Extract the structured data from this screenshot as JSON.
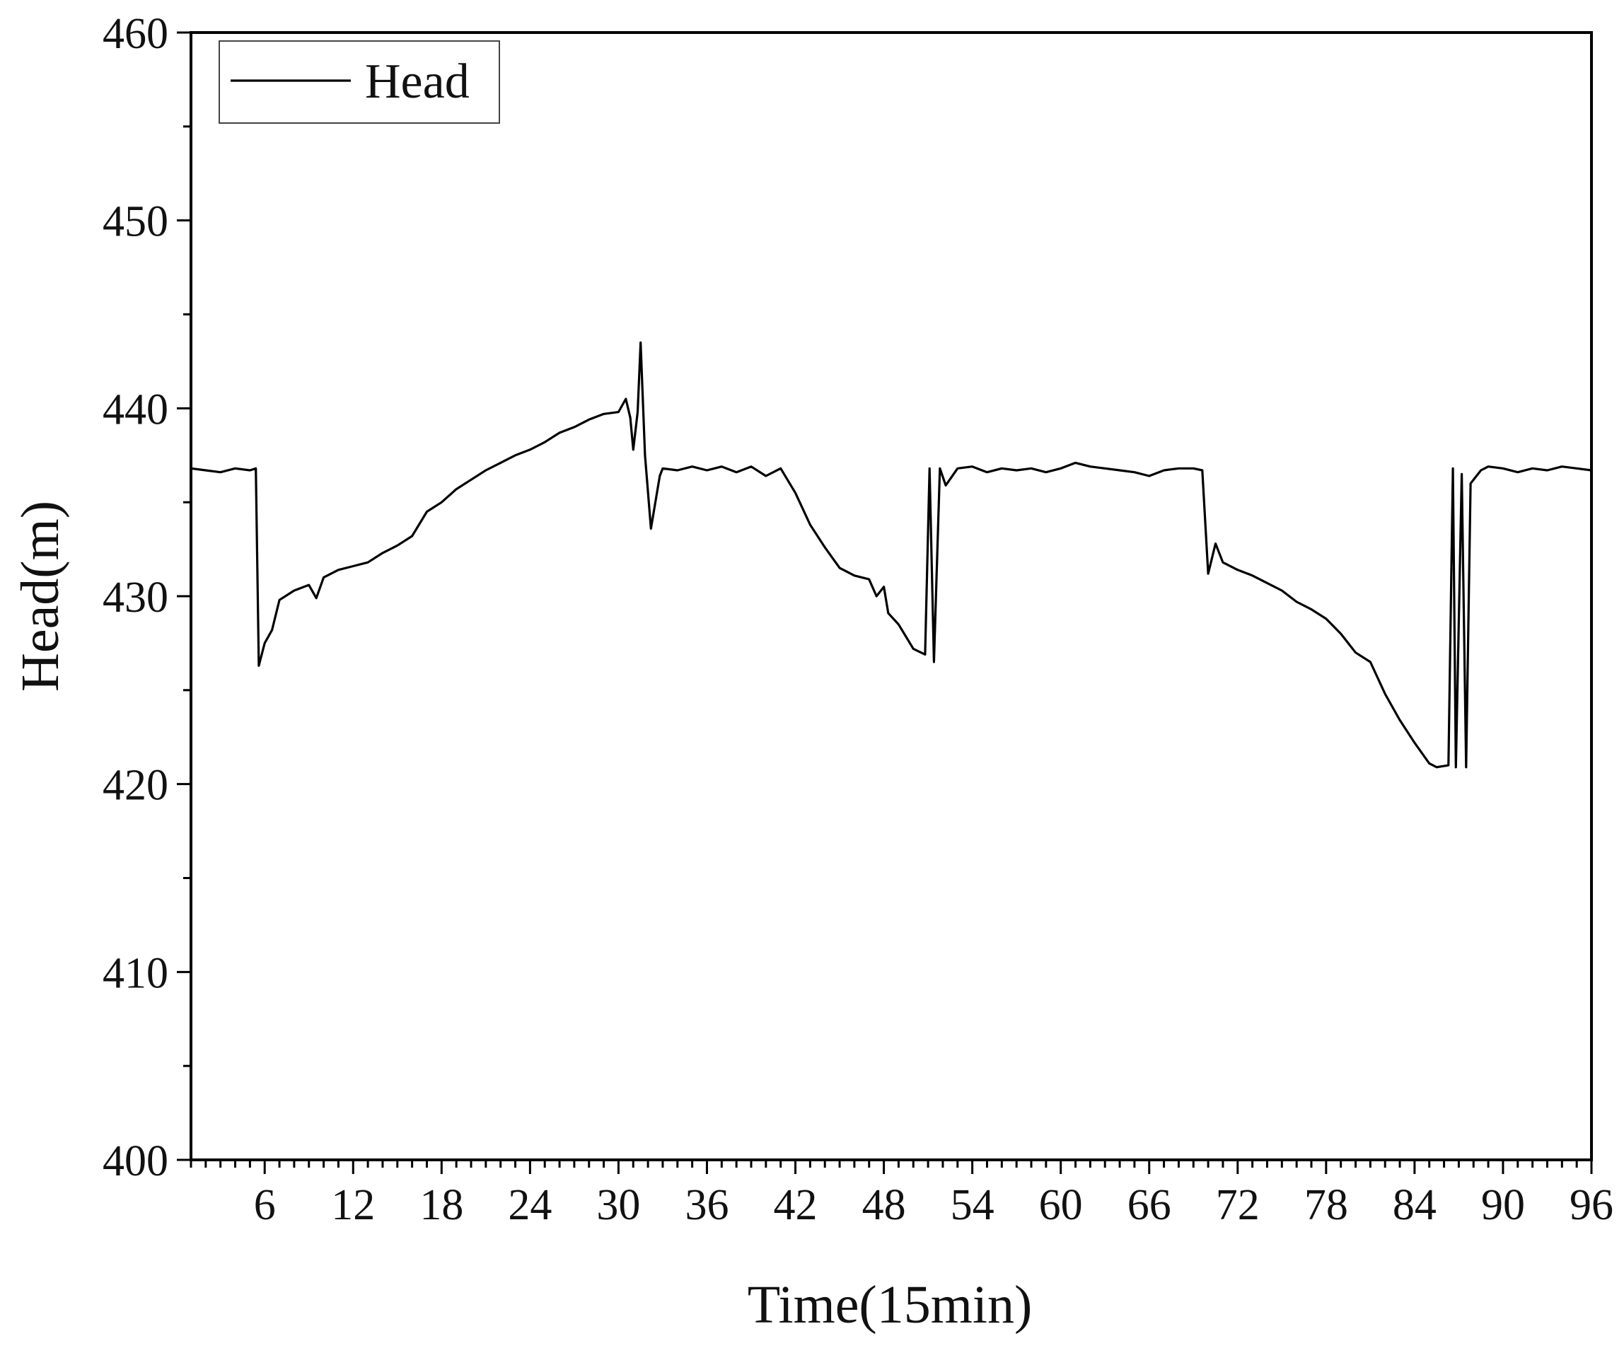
{
  "chart_data": {
    "type": "line",
    "title": "",
    "xlabel": "Time(15min)",
    "ylabel": "Head(m)",
    "xlim": [
      1,
      96
    ],
    "ylim": [
      400,
      460
    ],
    "x_ticks": [
      6,
      12,
      18,
      24,
      30,
      36,
      42,
      48,
      54,
      60,
      66,
      72,
      78,
      84,
      90,
      96
    ],
    "y_ticks": [
      400,
      410,
      420,
      430,
      440,
      450,
      460
    ],
    "grid": false,
    "legend": {
      "placement": "top-left",
      "entries": [
        "Head"
      ]
    },
    "series": [
      {
        "name": "Head",
        "color": "#000000",
        "points": [
          [
            1,
            436.8
          ],
          [
            2,
            436.7
          ],
          [
            3,
            436.6
          ],
          [
            4,
            436.8
          ],
          [
            5,
            436.7
          ],
          [
            5.4,
            436.8
          ],
          [
            5.6,
            426.3
          ],
          [
            6,
            427.5
          ],
          [
            6.5,
            428.2
          ],
          [
            7,
            429.8
          ],
          [
            8,
            430.3
          ],
          [
            9,
            430.6
          ],
          [
            9.5,
            429.9
          ],
          [
            10,
            431.0
          ],
          [
            11,
            431.4
          ],
          [
            12,
            431.6
          ],
          [
            13,
            431.8
          ],
          [
            14,
            432.3
          ],
          [
            15,
            432.7
          ],
          [
            16,
            433.2
          ],
          [
            17,
            434.5
          ],
          [
            18,
            435.0
          ],
          [
            19,
            435.7
          ],
          [
            20,
            436.2
          ],
          [
            21,
            436.7
          ],
          [
            22,
            437.1
          ],
          [
            23,
            437.5
          ],
          [
            24,
            437.8
          ],
          [
            25,
            438.2
          ],
          [
            26,
            438.7
          ],
          [
            27,
            439.0
          ],
          [
            28,
            439.4
          ],
          [
            29,
            439.7
          ],
          [
            30,
            439.8
          ],
          [
            30.5,
            440.5
          ],
          [
            30.8,
            439.5
          ],
          [
            31.0,
            437.8
          ],
          [
            31.3,
            439.8
          ],
          [
            31.5,
            443.5
          ],
          [
            31.8,
            437.5
          ],
          [
            32.2,
            433.6
          ],
          [
            32.8,
            436.4
          ],
          [
            33,
            436.8
          ],
          [
            34,
            436.7
          ],
          [
            35,
            436.9
          ],
          [
            36,
            436.7
          ],
          [
            37,
            436.9
          ],
          [
            38,
            436.6
          ],
          [
            39,
            436.9
          ],
          [
            40,
            436.4
          ],
          [
            41,
            436.8
          ],
          [
            42,
            435.5
          ],
          [
            43,
            433.8
          ],
          [
            44,
            432.6
          ],
          [
            45,
            431.5
          ],
          [
            46,
            431.1
          ],
          [
            47,
            430.9
          ],
          [
            47.5,
            430.0
          ],
          [
            48,
            430.5
          ],
          [
            48.3,
            429.1
          ],
          [
            49,
            428.5
          ],
          [
            50,
            427.2
          ],
          [
            50.8,
            426.9
          ],
          [
            51.1,
            436.8
          ],
          [
            51.4,
            426.5
          ],
          [
            51.8,
            436.8
          ],
          [
            52.2,
            435.9
          ],
          [
            53,
            436.8
          ],
          [
            54,
            436.9
          ],
          [
            55,
            436.6
          ],
          [
            56,
            436.8
          ],
          [
            57,
            436.7
          ],
          [
            58,
            436.8
          ],
          [
            59,
            436.6
          ],
          [
            60,
            436.8
          ],
          [
            61,
            437.1
          ],
          [
            62,
            436.9
          ],
          [
            63,
            436.8
          ],
          [
            64,
            436.7
          ],
          [
            65,
            436.6
          ],
          [
            66,
            436.4
          ],
          [
            67,
            436.7
          ],
          [
            68,
            436.8
          ],
          [
            69,
            436.8
          ],
          [
            69.6,
            436.7
          ],
          [
            70,
            431.2
          ],
          [
            70.5,
            432.8
          ],
          [
            71,
            431.8
          ],
          [
            72,
            431.4
          ],
          [
            73,
            431.1
          ],
          [
            74,
            430.7
          ],
          [
            75,
            430.3
          ],
          [
            76,
            429.7
          ],
          [
            77,
            429.3
          ],
          [
            78,
            428.8
          ],
          [
            79,
            428.0
          ],
          [
            80,
            427.0
          ],
          [
            81,
            426.5
          ],
          [
            82,
            424.8
          ],
          [
            83,
            423.4
          ],
          [
            84,
            422.2
          ],
          [
            85,
            421.1
          ],
          [
            85.5,
            420.9
          ],
          [
            86.3,
            421.0
          ],
          [
            86.6,
            436.8
          ],
          [
            86.8,
            420.9
          ],
          [
            87.2,
            436.5
          ],
          [
            87.5,
            420.9
          ],
          [
            87.8,
            436.0
          ],
          [
            88.5,
            436.7
          ],
          [
            89,
            436.9
          ],
          [
            90,
            436.8
          ],
          [
            91,
            436.6
          ],
          [
            92,
            436.8
          ],
          [
            93,
            436.7
          ],
          [
            94,
            436.9
          ],
          [
            95,
            436.8
          ],
          [
            96,
            436.7
          ]
        ]
      }
    ]
  }
}
